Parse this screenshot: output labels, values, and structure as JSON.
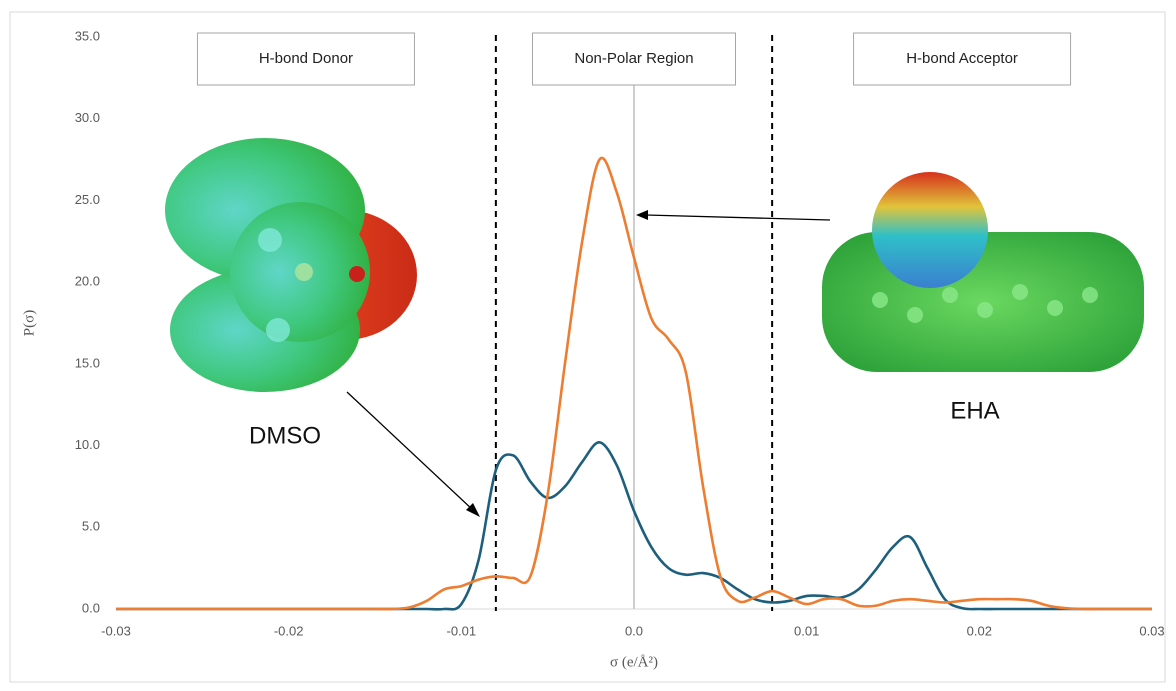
{
  "chart_data": {
    "type": "line",
    "x": [
      -0.03,
      -0.029,
      -0.028,
      -0.027,
      -0.026,
      -0.025,
      -0.024,
      -0.023,
      -0.022,
      -0.021,
      -0.02,
      -0.019,
      -0.018,
      -0.017,
      -0.016,
      -0.015,
      -0.014,
      -0.013,
      -0.012,
      -0.011,
      -0.01,
      -0.009,
      -0.008,
      -0.007,
      -0.006,
      -0.005,
      -0.004,
      -0.003,
      -0.002,
      -0.001,
      0,
      0.001,
      0.002,
      0.003,
      0.004,
      0.005,
      0.006,
      0.007,
      0.008,
      0.009,
      0.01,
      0.011,
      0.012,
      0.013,
      0.014,
      0.015,
      0.016,
      0.017,
      0.018,
      0.019,
      0.02,
      0.021,
      0.022,
      0.023,
      0.024,
      0.025,
      0.026,
      0.027,
      0.028,
      0.029,
      0.03
    ],
    "series": [
      {
        "name": "DMSO",
        "color": "#1d5f7c",
        "values": [
          0,
          0,
          0,
          0,
          0,
          0,
          0,
          0,
          0,
          0,
          0,
          0,
          0,
          0,
          0,
          0,
          0,
          0,
          0,
          0,
          0.3,
          3.0,
          8.5,
          9.4,
          7.8,
          6.8,
          7.5,
          9.0,
          10.2,
          8.8,
          6.0,
          3.8,
          2.5,
          2.1,
          2.2,
          1.9,
          1.2,
          0.6,
          0.4,
          0.5,
          0.8,
          0.8,
          0.7,
          1.2,
          2.4,
          3.8,
          4.4,
          2.5,
          0.6,
          0.05,
          0,
          0,
          0,
          0,
          0,
          0,
          0,
          0,
          0,
          0,
          0
        ]
      },
      {
        "name": "EHA",
        "color": "#ed7d31",
        "values": [
          0,
          0,
          0,
          0,
          0,
          0,
          0,
          0,
          0,
          0,
          0,
          0,
          0,
          0,
          0,
          0,
          0,
          0.1,
          0.5,
          1.2,
          1.4,
          1.8,
          2.0,
          1.9,
          2.0,
          7.0,
          15.0,
          22.5,
          27.5,
          25.5,
          21.5,
          17.8,
          16.5,
          14.5,
          7.5,
          2.0,
          0.5,
          0.7,
          1.1,
          0.7,
          0.3,
          0.6,
          0.6,
          0.2,
          0.2,
          0.5,
          0.6,
          0.5,
          0.4,
          0.5,
          0.6,
          0.6,
          0.6,
          0.5,
          0.2,
          0.05,
          0,
          0,
          0,
          0,
          0
        ]
      }
    ],
    "xlim": [
      -0.03,
      0.03
    ],
    "xticks": [
      {
        "value": -0.03,
        "label": "-0.03"
      },
      {
        "value": -0.02,
        "label": "-0.02"
      },
      {
        "value": -0.01,
        "label": "-0.01"
      },
      {
        "value": 0,
        "label": "0.0"
      },
      {
        "value": 0.01,
        "label": "0.01"
      },
      {
        "value": 0.02,
        "label": "0.02"
      },
      {
        "value": 0.03,
        "label": "0.03"
      }
    ],
    "ylim": [
      0,
      35
    ],
    "yticks": [
      {
        "value": 0,
        "label": "0.0"
      },
      {
        "value": 5,
        "label": "5.0"
      },
      {
        "value": 10,
        "label": "10.0"
      },
      {
        "value": 15,
        "label": "15.0"
      },
      {
        "value": 20,
        "label": "20.0"
      },
      {
        "value": 25,
        "label": "25.0"
      },
      {
        "value": 30,
        "label": "30.0"
      },
      {
        "value": 35,
        "label": "35.0"
      }
    ],
    "xlabel": "σ (e/Å²)",
    "ylabel": "P(σ)",
    "region_lines": [
      -0.008,
      0.008
    ],
    "region_labels": [
      "H-bond Donor",
      "Non-Polar Region",
      "H-bond Acceptor"
    ]
  }
}
